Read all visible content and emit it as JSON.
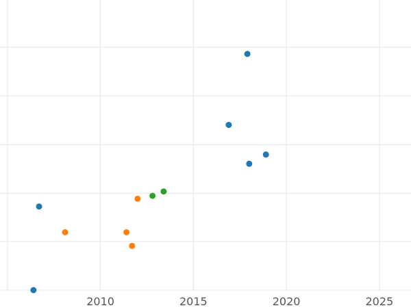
{
  "chart_data": {
    "type": "scatter",
    "title": "",
    "xlabel": "",
    "ylabel": "",
    "grid": true,
    "xlim": [
      2004.6,
      2026.7
    ],
    "ylim": [
      0,
      6
    ],
    "x_ticks": [
      2010,
      2015,
      2020,
      2025
    ],
    "x_tick_labels": [
      "2010",
      "2015",
      "2020",
      "2025"
    ],
    "y_gridlines": [
      0.03,
      1.03,
      2.02,
      3.02,
      4.03,
      5.03
    ],
    "series": [
      {
        "color": "#1f77b4",
        "points": [
          {
            "x": 2006.4,
            "y": 0.03
          },
          {
            "x": 2006.7,
            "y": 1.75
          },
          {
            "x": 2016.9,
            "y": 3.43
          },
          {
            "x": 2017.9,
            "y": 4.89
          },
          {
            "x": 2018.0,
            "y": 2.63
          },
          {
            "x": 2018.9,
            "y": 2.82
          }
        ]
      },
      {
        "color": "#ff7f0e",
        "points": [
          {
            "x": 2008.1,
            "y": 1.22
          },
          {
            "x": 2011.4,
            "y": 1.22
          },
          {
            "x": 2011.7,
            "y": 0.94
          },
          {
            "x": 2012.0,
            "y": 1.91
          }
        ]
      },
      {
        "color": "#2ca02c",
        "points": [
          {
            "x": 2012.8,
            "y": 1.97
          },
          {
            "x": 2013.4,
            "y": 2.06
          }
        ]
      }
    ]
  }
}
